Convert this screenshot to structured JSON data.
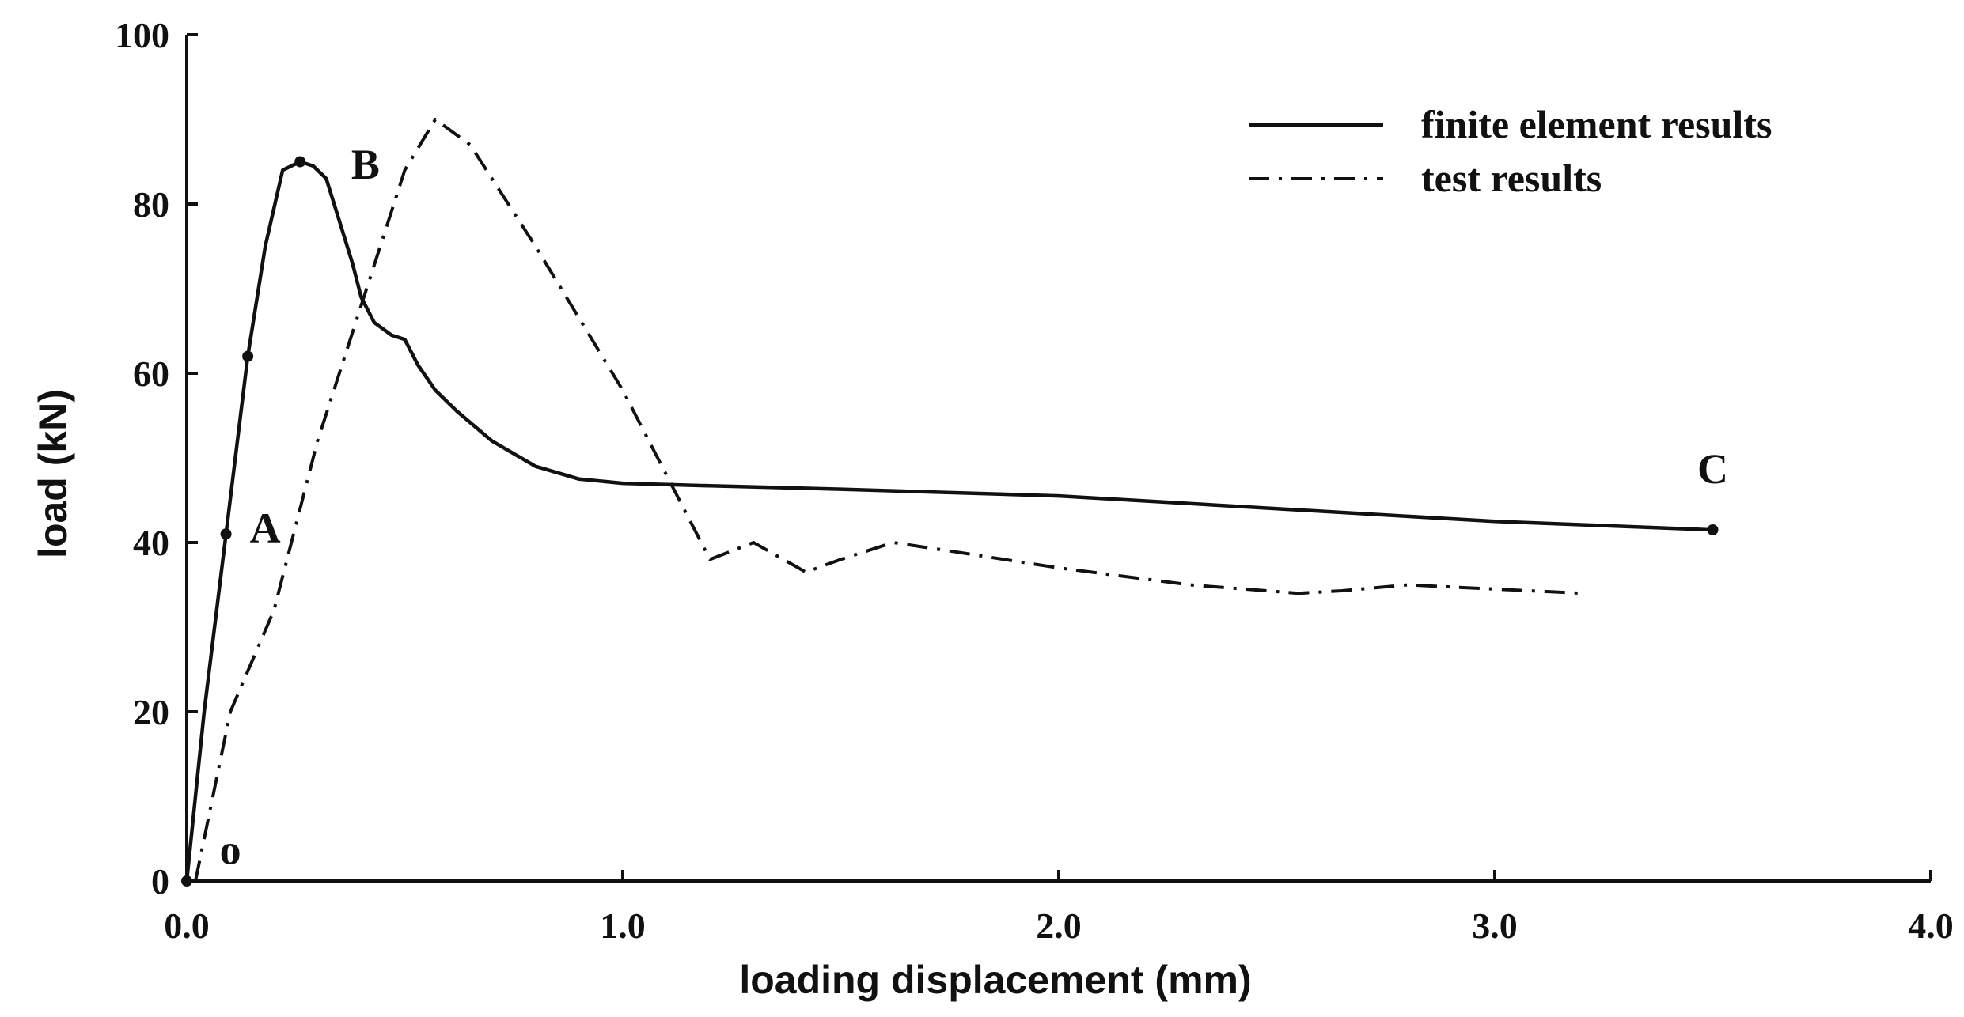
{
  "chart_data": {
    "type": "line",
    "title": "",
    "xlabel": "loading displacement  (mm)",
    "ylabel": "load  (kN)",
    "xlim": [
      0,
      4
    ],
    "ylim": [
      0,
      100
    ],
    "x_ticks": [
      0,
      1,
      2,
      3,
      4
    ],
    "x_tick_labels": [
      "0.0",
      "1.0",
      "2.0",
      "3.0",
      "4.0"
    ],
    "y_ticks": [
      0,
      20,
      40,
      60,
      80,
      100
    ],
    "y_tick_labels": [
      "0",
      "20",
      "40",
      "60",
      "80",
      "100"
    ],
    "grid": false,
    "legend_position": "top-right",
    "series": [
      {
        "name": "finite element results",
        "style": "solid",
        "color": "#111111",
        "x": [
          0.0,
          0.04,
          0.09,
          0.14,
          0.18,
          0.22,
          0.26,
          0.29,
          0.32,
          0.35,
          0.38,
          0.4,
          0.43,
          0.47,
          0.5,
          0.53,
          0.57,
          0.62,
          0.7,
          0.8,
          0.9,
          1.0,
          1.2,
          1.5,
          2.0,
          2.5,
          3.0,
          3.5
        ],
        "y": [
          0,
          20,
          41,
          62,
          75,
          84,
          85,
          84.5,
          83,
          78,
          73,
          69,
          66,
          64.5,
          64,
          61,
          58,
          55.5,
          52,
          49,
          47.5,
          47,
          46.7,
          46.3,
          45.5,
          44,
          42.5,
          41.5
        ],
        "markers": [
          {
            "x": 0.0,
            "y": 0
          },
          {
            "x": 0.09,
            "y": 41
          },
          {
            "x": 0.14,
            "y": 62
          },
          {
            "x": 0.26,
            "y": 85
          },
          {
            "x": 3.5,
            "y": 41.5
          }
        ]
      },
      {
        "name": "test results",
        "style": "dash-dot",
        "color": "#111111",
        "x": [
          0.02,
          0.1,
          0.2,
          0.3,
          0.4,
          0.45,
          0.5,
          0.57,
          0.65,
          0.8,
          1.0,
          1.2,
          1.3,
          1.42,
          1.5,
          1.62,
          1.75,
          2.0,
          2.3,
          2.55,
          2.65,
          2.8,
          3.0,
          3.2
        ],
        "y": [
          0,
          20,
          32,
          52,
          68,
          76,
          84,
          90,
          87,
          75,
          58,
          38,
          40,
          36.5,
          38,
          40,
          39,
          37,
          35,
          34,
          34.3,
          35,
          34.5,
          34
        ]
      }
    ],
    "annotations": [
      {
        "text": "o",
        "x": 0.1,
        "y": 2
      },
      {
        "text": "A",
        "x": 0.18,
        "y": 40
      },
      {
        "text": "B",
        "x": 0.41,
        "y": 83
      },
      {
        "text": "C",
        "x": 3.5,
        "y": 47
      }
    ]
  }
}
